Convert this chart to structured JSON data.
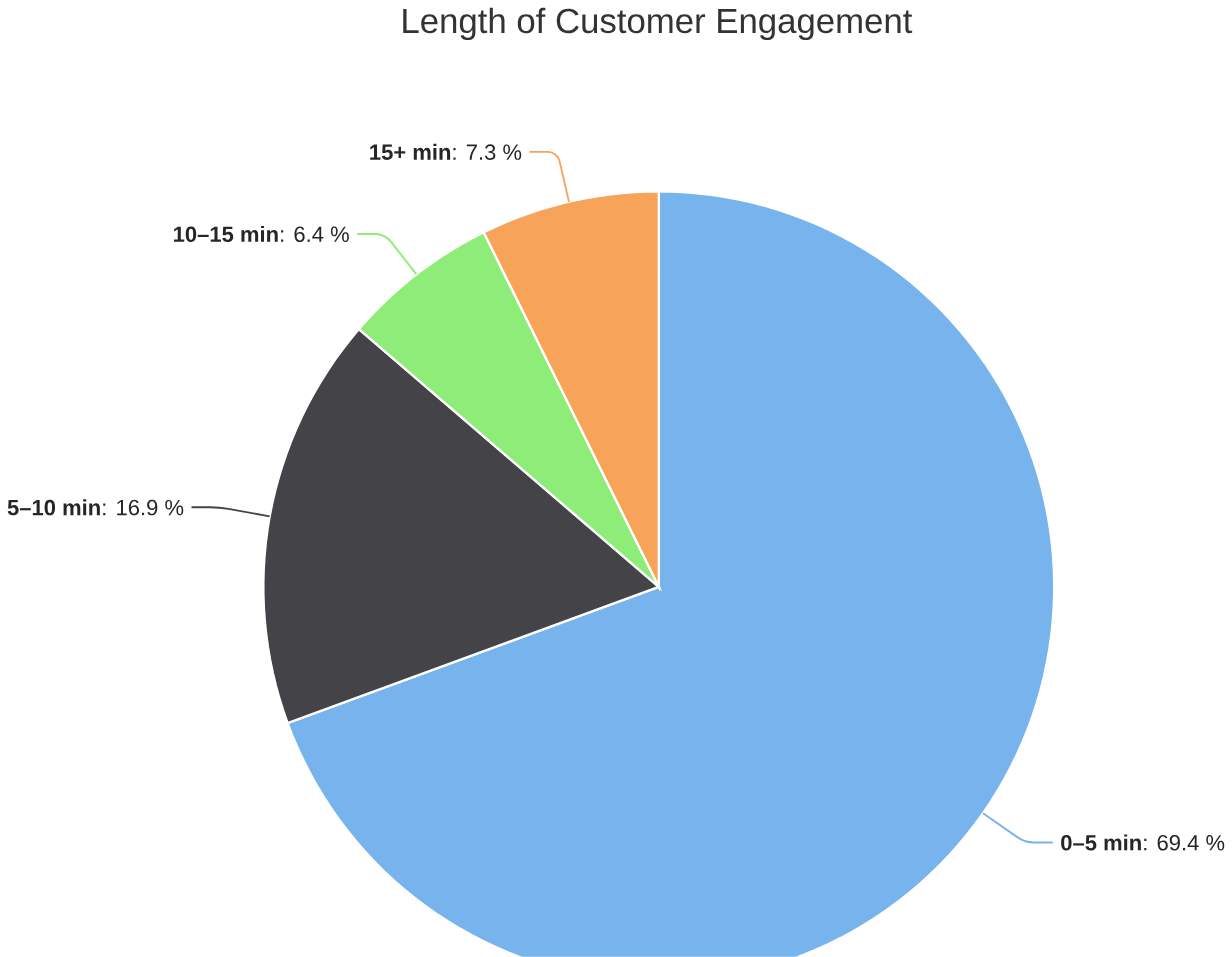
{
  "chart_data": {
    "type": "pie",
    "title": "Length of Customer Engagement",
    "categories": [
      "0–5 min",
      "5–10 min",
      "10–15 min",
      "15+ min"
    ],
    "values": [
      69.4,
      16.9,
      6.4,
      7.3
    ],
    "colors": [
      "#77b3ec",
      "#434348",
      "#8ded78",
      "#f7a45a"
    ],
    "value_labels": [
      ": 69.4 %",
      ": 16.9 %",
      ": 6.4 %",
      ": 7.3 %"
    ]
  }
}
